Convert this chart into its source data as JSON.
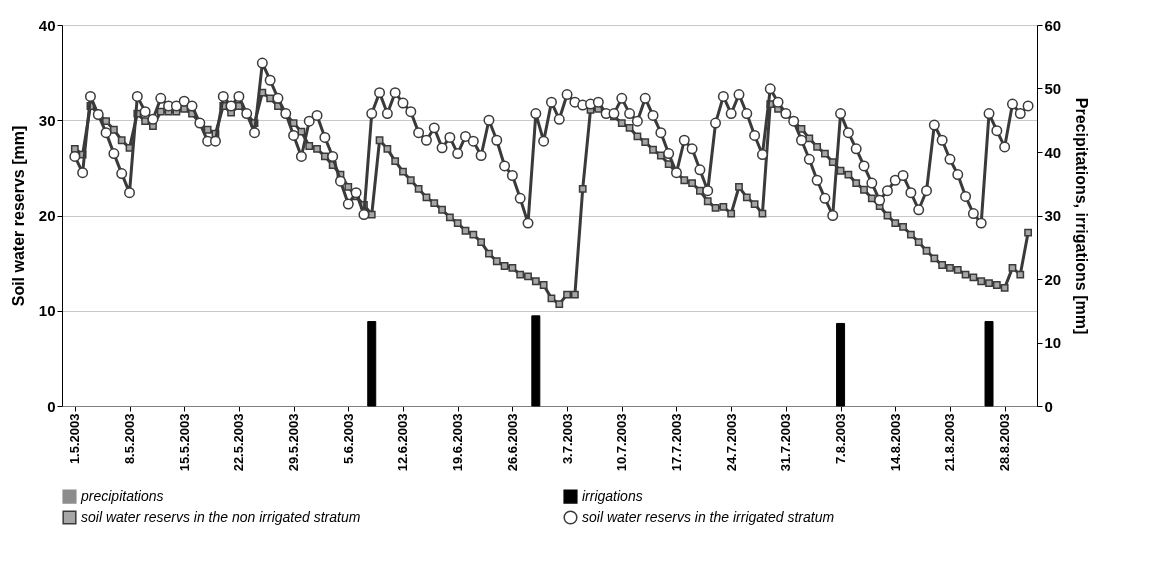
{
  "chart_data": {
    "type": "line",
    "xlabel": null,
    "ylabel": "Soil water reservs [mm]",
    "y2label": "Precipitations, irrigations [mm]",
    "x": [
      "2003-05-01",
      "2003-05-02",
      "2003-05-03",
      "2003-05-04",
      "2003-05-05",
      "2003-05-06",
      "2003-05-07",
      "2003-05-08",
      "2003-05-09",
      "2003-05-10",
      "2003-05-11",
      "2003-05-12",
      "2003-05-13",
      "2003-05-14",
      "2003-05-15",
      "2003-05-16",
      "2003-05-17",
      "2003-05-18",
      "2003-05-19",
      "2003-05-20",
      "2003-05-21",
      "2003-05-22",
      "2003-05-23",
      "2003-05-24",
      "2003-05-25",
      "2003-05-26",
      "2003-05-27",
      "2003-05-28",
      "2003-05-29",
      "2003-05-30",
      "2003-05-31",
      "2003-06-01",
      "2003-06-02",
      "2003-06-03",
      "2003-06-04",
      "2003-06-05",
      "2003-06-06",
      "2003-06-07",
      "2003-06-08",
      "2003-06-09",
      "2003-06-10",
      "2003-06-11",
      "2003-06-12",
      "2003-06-13",
      "2003-06-14",
      "2003-06-15",
      "2003-06-16",
      "2003-06-17",
      "2003-06-18",
      "2003-06-19",
      "2003-06-20",
      "2003-06-21",
      "2003-06-22",
      "2003-06-23",
      "2003-06-24",
      "2003-06-25",
      "2003-06-26",
      "2003-06-27",
      "2003-06-28",
      "2003-06-29",
      "2003-06-30",
      "2003-07-01",
      "2003-07-02",
      "2003-07-03",
      "2003-07-04",
      "2003-07-05",
      "2003-07-06",
      "2003-07-07",
      "2003-07-08",
      "2003-07-09",
      "2003-07-10",
      "2003-07-11",
      "2003-07-12",
      "2003-07-13",
      "2003-07-14",
      "2003-07-15",
      "2003-07-16",
      "2003-07-17",
      "2003-07-18",
      "2003-07-19",
      "2003-07-20",
      "2003-07-21",
      "2003-07-22",
      "2003-07-23",
      "2003-07-24",
      "2003-07-25",
      "2003-07-26",
      "2003-07-27",
      "2003-07-28",
      "2003-07-29",
      "2003-07-30",
      "2003-07-31",
      "2003-08-01",
      "2003-08-02",
      "2003-08-03",
      "2003-08-04",
      "2003-08-05",
      "2003-08-06",
      "2003-08-07",
      "2003-08-08",
      "2003-08-09",
      "2003-08-10",
      "2003-08-11",
      "2003-08-12",
      "2003-08-13",
      "2003-08-14",
      "2003-08-15",
      "2003-08-16",
      "2003-08-17",
      "2003-08-18",
      "2003-08-19",
      "2003-08-20",
      "2003-08-21",
      "2003-08-22",
      "2003-08-23",
      "2003-08-24",
      "2003-08-25",
      "2003-08-26",
      "2003-08-27",
      "2003-08-28",
      "2003-08-29",
      "2003-08-30",
      "2003-08-31"
    ],
    "series": [
      {
        "name": "precipitations",
        "type": "bar",
        "axis": "y2",
        "color": "#8c8c8c",
        "values": [
          null,
          null,
          null,
          null,
          null,
          null,
          null,
          null,
          null,
          null,
          null,
          null,
          null,
          null,
          null,
          null,
          null,
          null,
          null,
          null,
          null,
          null,
          null,
          null,
          null,
          null,
          null,
          null,
          null,
          null,
          null,
          null,
          null,
          null,
          null,
          null,
          null,
          null,
          null,
          null,
          null,
          null,
          null,
          null,
          null,
          null,
          null,
          null,
          null,
          null,
          null,
          null,
          null,
          null,
          null,
          null,
          null,
          null,
          null,
          null,
          null,
          null,
          null,
          null,
          null,
          null,
          null,
          null,
          null,
          null,
          null,
          null,
          null,
          null,
          null,
          null,
          null,
          null,
          null,
          null,
          null,
          null,
          null,
          null,
          null,
          null,
          null,
          null,
          null,
          null,
          null,
          null,
          null,
          null,
          null,
          null,
          null,
          null,
          null,
          null,
          null,
          null,
          null,
          null,
          null,
          null,
          null,
          null,
          null,
          null,
          null,
          null,
          null,
          null,
          null,
          null,
          null,
          null,
          null,
          null,
          null,
          null,
          null
        ]
      },
      {
        "name": "irrigations",
        "type": "bar",
        "axis": "y2",
        "color": "#000000",
        "x": [
          "2003-06-08",
          "2003-06-29",
          "2003-08-07",
          "2003-08-26"
        ],
        "values": [
          13.3,
          14.2,
          13.0,
          13.3
        ]
      },
      {
        "name": "soil water reservs in the non irrigated stratum",
        "marker": "square",
        "color": "#3a3a3a",
        "values": [
          27.0,
          26.4,
          31.5,
          30.7,
          29.9,
          29.0,
          27.9,
          27.1,
          30.7,
          29.9,
          29.4,
          30.9,
          30.9,
          30.9,
          31.2,
          30.7,
          29.7,
          29.0,
          28.6,
          31.5,
          30.8,
          31.5,
          30.7,
          29.7,
          32.9,
          32.3,
          31.5,
          30.7,
          29.7,
          28.8,
          27.3,
          27.0,
          26.2,
          25.3,
          24.3,
          23.0,
          22.0,
          21.1,
          20.1,
          27.9,
          27.0,
          25.7,
          24.6,
          23.7,
          22.8,
          21.9,
          21.3,
          20.6,
          19.8,
          19.2,
          18.4,
          18.0,
          17.2,
          16.0,
          15.2,
          14.7,
          14.5,
          13.8,
          13.6,
          13.1,
          12.7,
          11.3,
          10.7,
          11.7,
          11.7,
          22.8,
          31.1,
          31.2,
          30.7,
          30.4,
          29.7,
          29.2,
          28.3,
          27.7,
          26.9,
          26.3,
          25.4,
          24.5,
          23.7,
          23.4,
          22.6,
          21.5,
          20.8,
          20.9,
          20.2,
          23.0,
          21.9,
          21.2,
          20.2,
          31.7,
          31.2,
          30.7,
          29.9,
          29.1,
          28.1,
          27.2,
          26.5,
          25.6,
          24.7,
          24.3,
          23.4,
          22.7,
          21.8,
          21.0,
          20.0,
          19.2,
          18.8,
          18.0,
          17.2,
          16.3,
          15.5,
          14.8,
          14.5,
          14.3,
          13.8,
          13.5,
          13.1,
          12.9,
          12.7,
          12.4,
          14.5,
          13.8,
          18.2
        ]
      },
      {
        "name": "soil water reservs in the irrigated stratum",
        "marker": "circle",
        "color": "#3a3a3a",
        "values": [
          26.2,
          24.5,
          32.5,
          30.6,
          28.7,
          26.5,
          24.4,
          22.4,
          32.5,
          30.9,
          30.1,
          32.3,
          31.5,
          31.5,
          32.0,
          31.5,
          29.7,
          27.8,
          27.8,
          32.5,
          31.5,
          32.5,
          30.7,
          28.7,
          36.0,
          34.2,
          32.3,
          30.7,
          28.4,
          26.2,
          29.9,
          30.5,
          28.2,
          26.2,
          23.6,
          21.2,
          22.4,
          20.1,
          30.7,
          32.9,
          30.7,
          32.9,
          31.8,
          30.9,
          28.7,
          27.9,
          29.2,
          27.1,
          28.2,
          26.5,
          28.3,
          27.8,
          26.3,
          30.0,
          27.9,
          25.2,
          24.2,
          21.8,
          19.2,
          30.7,
          27.8,
          31.9,
          30.1,
          32.7,
          31.9,
          31.6,
          31.7,
          31.9,
          30.7,
          30.7,
          32.3,
          30.7,
          29.9,
          32.3,
          30.5,
          28.7,
          26.5,
          24.5,
          27.9,
          27.0,
          24.8,
          22.6,
          29.7,
          32.5,
          30.7,
          32.7,
          30.7,
          28.4,
          26.4,
          33.3,
          31.9,
          30.7,
          29.9,
          27.9,
          25.9,
          23.7,
          21.8,
          20.0,
          30.7,
          28.7,
          27.0,
          25.2,
          23.4,
          21.6,
          22.6,
          23.7,
          24.2,
          22.4,
          20.6,
          22.6,
          29.5,
          27.9,
          25.9,
          24.3,
          22.0,
          20.2,
          19.2,
          30.7,
          28.9,
          27.2,
          31.7,
          30.7,
          31.5
        ]
      }
    ],
    "xlim": [
      "2003-04-30",
      "2003-08-31T12:00"
    ],
    "xticks": [
      {
        "value": "2003-05-01",
        "label": "1.5.2003"
      },
      {
        "value": "2003-05-08",
        "label": "8.5.2003"
      },
      {
        "value": "2003-05-15",
        "label": "15.5.2003"
      },
      {
        "value": "2003-05-22",
        "label": "22.5.2003"
      },
      {
        "value": "2003-05-29",
        "label": "29.5.2003"
      },
      {
        "value": "2003-06-05",
        "label": "5.6.2003"
      },
      {
        "value": "2003-06-12",
        "label": "12.6.2003"
      },
      {
        "value": "2003-06-19",
        "label": "19.6.2003"
      },
      {
        "value": "2003-06-26",
        "label": "26.6.2003"
      },
      {
        "value": "2003-07-03",
        "label": "3.7.2003"
      },
      {
        "value": "2003-07-10",
        "label": "10.7.2003"
      },
      {
        "value": "2003-07-17",
        "label": "17.7.2003"
      },
      {
        "value": "2003-07-24",
        "label": "24.7.2003"
      },
      {
        "value": "2003-07-31",
        "label": "31.7.2003"
      },
      {
        "value": "2003-08-07",
        "label": "7.8.2003"
      },
      {
        "value": "2003-08-14",
        "label": "14.8.2003"
      },
      {
        "value": "2003-08-21",
        "label": "21.8.2003"
      },
      {
        "value": "2003-08-28",
        "label": "28.8.2003"
      }
    ],
    "ylim": [
      0,
      40
    ],
    "yticks": [
      0,
      10,
      20,
      30,
      40
    ],
    "y2lim": [
      0,
      60
    ],
    "y2ticks": [
      0,
      10,
      20,
      30,
      40,
      50,
      60
    ],
    "grid": "y",
    "legend": "bottom"
  }
}
